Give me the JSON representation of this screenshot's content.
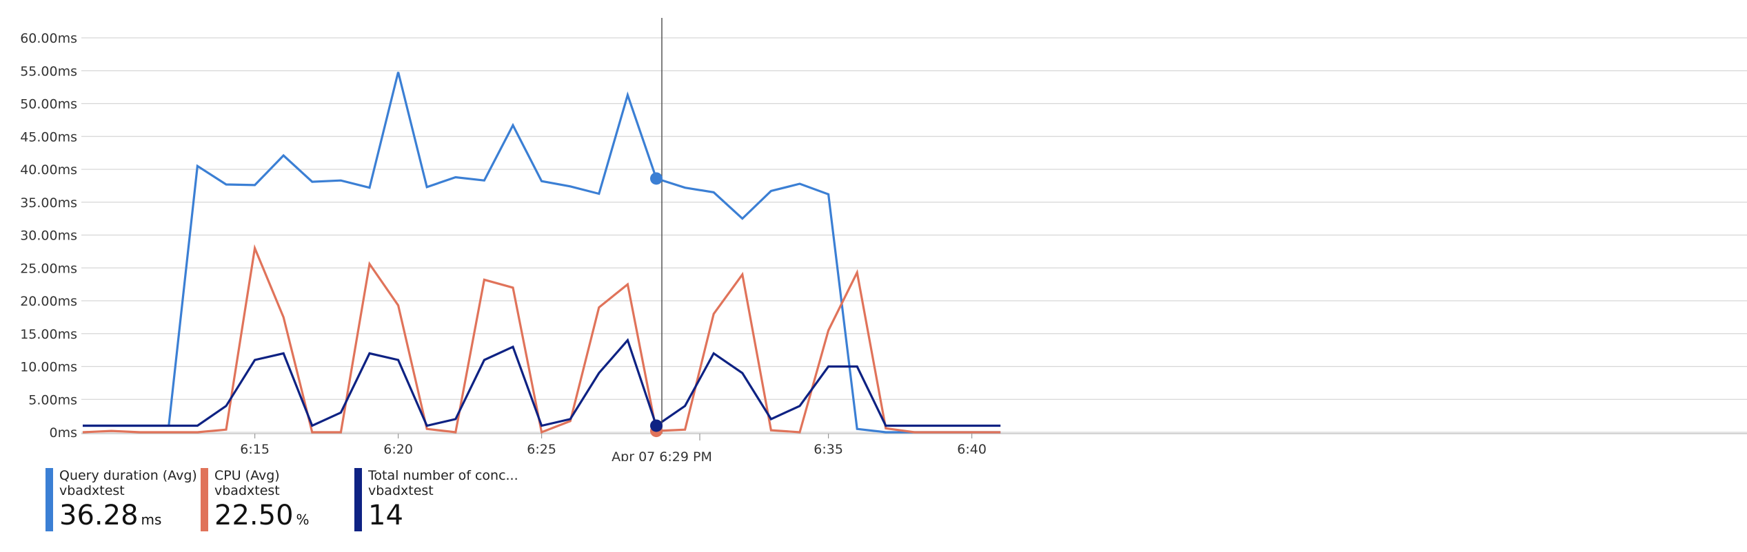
{
  "chart_data": {
    "type": "line",
    "ylim": [
      0,
      60
    ],
    "y_ticks": [
      "0ms",
      "5.00ms",
      "10.00ms",
      "15.00ms",
      "20.00ms",
      "25.00ms",
      "30.00ms",
      "35.00ms",
      "40.00ms",
      "45.00ms",
      "50.00ms",
      "55.00ms",
      "60.00ms"
    ],
    "y_tick_values": [
      0,
      5,
      10,
      15,
      20,
      25,
      30,
      35,
      40,
      45,
      50,
      55,
      60
    ],
    "x_ticks": [
      "6:15",
      "6:20",
      "6:25",
      "6:35",
      "6:40"
    ],
    "x_tick_values": [
      "6:15",
      "6:20",
      "6:25",
      "6:35",
      "6:40"
    ],
    "x": [
      "6:09",
      "6:10",
      "6:11",
      "6:12",
      "6:13",
      "6:14",
      "6:15",
      "6:16",
      "6:17",
      "6:18",
      "6:19",
      "6:20",
      "6:21",
      "6:22",
      "6:23",
      "6:24",
      "6:25",
      "6:26",
      "6:27",
      "6:28",
      "6:29",
      "6:30",
      "6:31",
      "6:32",
      "6:33",
      "6:34",
      "6:35",
      "6:36",
      "6:37",
      "6:38",
      "6:39",
      "6:40",
      "6:41"
    ],
    "grid": true,
    "cursor": {
      "x": "6:29",
      "label": "Apr 07 6:29 PM"
    },
    "series": [
      {
        "name": "Query duration (Avg)",
        "resource": "vbadxtest",
        "color": "#3b7fd4",
        "current_value": "36.28",
        "unit": "ms",
        "values": [
          1,
          1,
          1,
          1,
          40.5,
          37.7,
          37.6,
          42.1,
          38.1,
          38.3,
          37.2,
          54.8,
          37.3,
          38.8,
          38.3,
          46.7,
          38.2,
          37.4,
          36.28,
          51.3,
          38.6,
          37.2,
          36.5,
          32.5,
          36.7,
          37.8,
          36.2,
          0.5,
          0,
          0,
          0,
          0,
          0
        ]
      },
      {
        "name": "CPU (Avg)",
        "resource": "vbadxtest",
        "color": "#e0735a",
        "current_value": "22.50",
        "unit": "%",
        "values": [
          0,
          0.2,
          0,
          0,
          0,
          0.4,
          28,
          17.5,
          0,
          0,
          25.6,
          19.3,
          0.5,
          0,
          23.2,
          22,
          0,
          1.7,
          19,
          22.5,
          0.2,
          0.4,
          18,
          24,
          0.3,
          0,
          15.5,
          24.3,
          0.6,
          0,
          0,
          0,
          0
        ]
      },
      {
        "name": "Total number of conc...",
        "resource": "vbadxtest",
        "color": "#0e2283",
        "current_value": "14",
        "unit": "",
        "values": [
          1,
          1,
          1,
          1,
          1,
          4,
          11,
          12,
          1,
          3,
          12,
          11,
          1,
          2,
          11,
          13,
          1,
          2,
          9,
          14,
          1,
          4,
          12,
          9,
          2,
          4,
          10,
          10,
          1,
          1,
          1,
          1,
          1
        ]
      }
    ]
  }
}
